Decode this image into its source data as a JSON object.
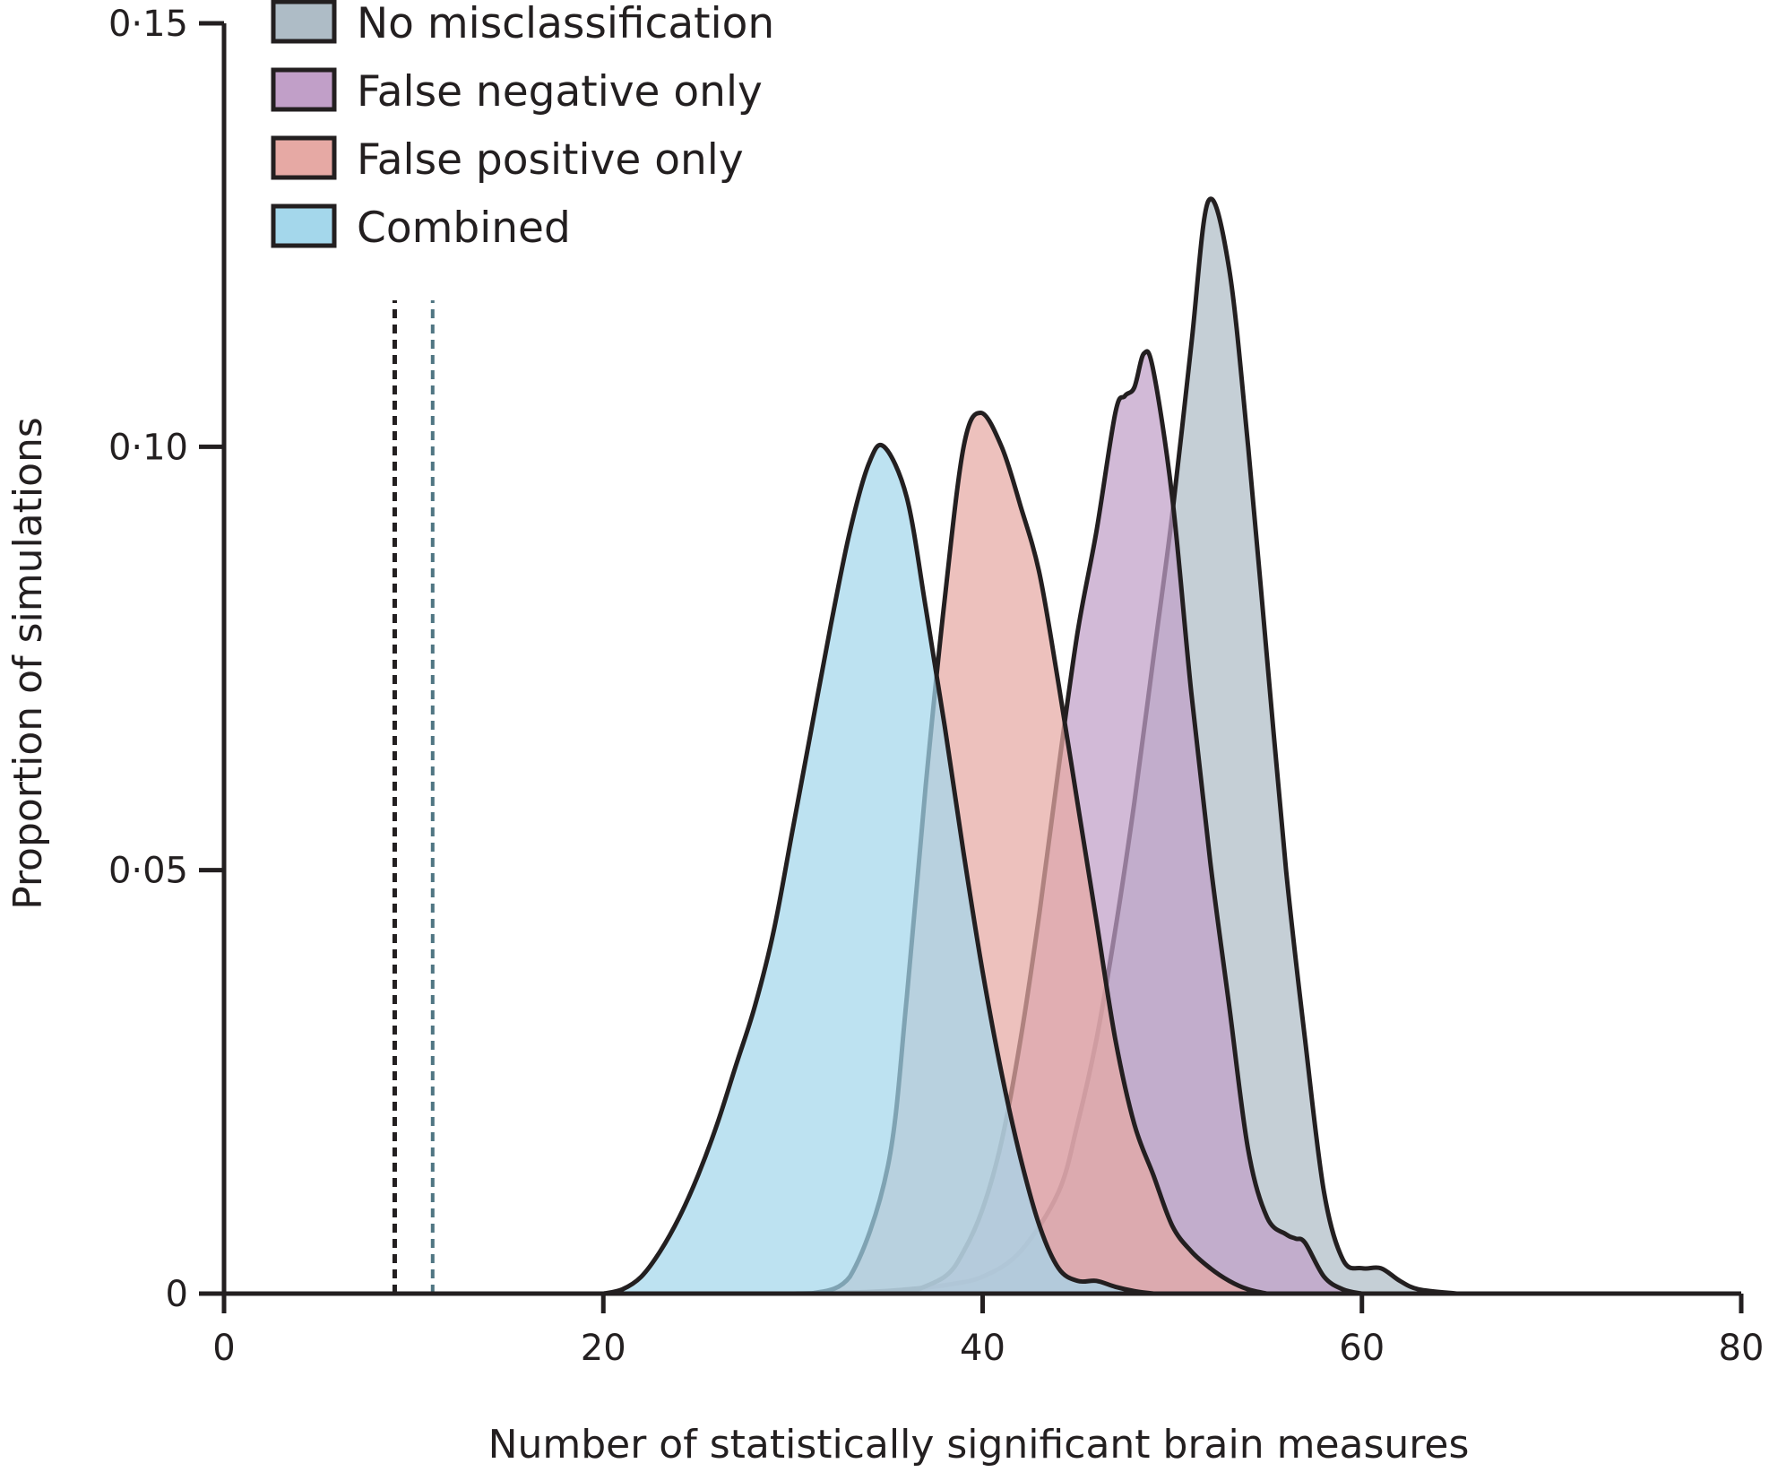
{
  "chart_data": {
    "type": "area",
    "title": "",
    "xlabel": "Number of statistically significant brain measures",
    "ylabel": "Proportion of simulations",
    "xlim": [
      0,
      80
    ],
    "ylim": [
      0,
      0.15
    ],
    "xticks": [
      0,
      20,
      40,
      60,
      80
    ],
    "xtick_labels": [
      "0",
      "20",
      "40",
      "60",
      "80"
    ],
    "yticks": [
      0,
      0.05,
      0.1,
      0.15
    ],
    "ytick_labels": [
      "0",
      "0·05",
      "0·10",
      "0·15"
    ],
    "legend_position": "top-left",
    "grid": false,
    "series": [
      {
        "name": "No misclassification",
        "color": "#aebcc6",
        "x": [
          30,
          34,
          36,
          38,
          40,
          42,
          44,
          45,
          46,
          47,
          48,
          49,
          50,
          51,
          51.9,
          53,
          54,
          55,
          56,
          57,
          58,
          59,
          60,
          61,
          62,
          63,
          65
        ],
        "y": [
          0,
          0.0002,
          0.0005,
          0.001,
          0.002,
          0.005,
          0.012,
          0.02,
          0.03,
          0.043,
          0.058,
          0.075,
          0.092,
          0.112,
          0.129,
          0.121,
          0.1,
          0.075,
          0.05,
          0.03,
          0.012,
          0.004,
          0.003,
          0.003,
          0.0015,
          0.0005,
          0
        ]
      },
      {
        "name": "False negative only",
        "color": "#c19fc8",
        "x": [
          36,
          38,
          39,
          40,
          41,
          42,
          43,
          44,
          45,
          46,
          47,
          47.5,
          48,
          48.5,
          49,
          50,
          51,
          52,
          53,
          54,
          55,
          56,
          56.5,
          57,
          58,
          59,
          60
        ],
        "y": [
          0,
          0.002,
          0.005,
          0.01,
          0.018,
          0.03,
          0.045,
          0.062,
          0.078,
          0.09,
          0.104,
          0.106,
          0.107,
          0.111,
          0.109,
          0.094,
          0.071,
          0.051,
          0.034,
          0.017,
          0.009,
          0.007,
          0.0065,
          0.006,
          0.002,
          0.0005,
          0
        ]
      },
      {
        "name": "False positive only",
        "color": "#e6a9a4",
        "x": [
          31,
          33,
          35,
          36,
          37,
          38,
          39,
          39.9,
          41,
          42,
          43,
          44,
          45,
          46,
          47,
          48,
          49,
          50,
          51,
          52,
          53,
          54,
          55
        ],
        "y": [
          0,
          0.002,
          0.015,
          0.035,
          0.06,
          0.082,
          0.1,
          0.104,
          0.1,
          0.093,
          0.085,
          0.072,
          0.058,
          0.044,
          0.03,
          0.02,
          0.014,
          0.008,
          0.005,
          0.003,
          0.0015,
          0.0005,
          0
        ]
      },
      {
        "name": "Combined",
        "color": "#a4d7eb",
        "x": [
          20,
          21,
          22,
          23,
          24,
          25,
          26,
          27,
          28,
          29,
          30,
          31,
          32,
          33,
          34,
          34.8,
          36,
          37,
          38,
          39,
          40,
          41,
          42,
          43,
          44,
          45,
          46,
          47,
          48,
          49
        ],
        "y": [
          0,
          0.0005,
          0.002,
          0.005,
          0.009,
          0.014,
          0.02,
          0.027,
          0.034,
          0.043,
          0.055,
          0.067,
          0.079,
          0.09,
          0.098,
          0.1,
          0.094,
          0.081,
          0.067,
          0.052,
          0.038,
          0.026,
          0.016,
          0.008,
          0.003,
          0.0015,
          0.0015,
          0.0008,
          0.0003,
          0
        ]
      }
    ],
    "reference_lines": [
      {
        "x": 9,
        "color": "#231f20",
        "style": "dashed"
      },
      {
        "x": 11,
        "color": "#4f7582",
        "style": "dashed"
      }
    ]
  }
}
